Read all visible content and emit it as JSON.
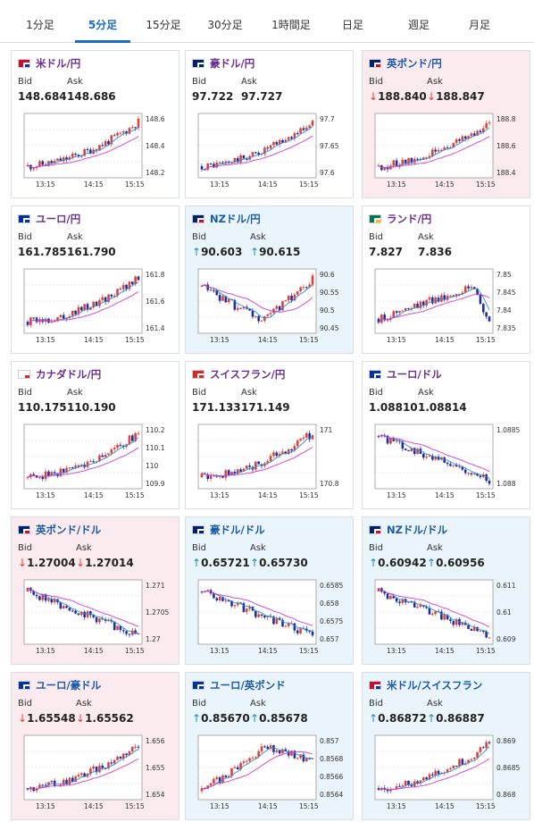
{
  "tabs": [
    "1分足",
    "5分足",
    "15分足",
    "30分足",
    "1時間足",
    "日足",
    "週足",
    "月足"
  ],
  "active_tab": 1,
  "labels": {
    "bid": "Bid",
    "ask": "Ask"
  },
  "colors": {
    "accent": "#1a6ec2",
    "up_candle": "#e0403a",
    "down_candle": "#1f2e9c",
    "ma_short": "#2a90d8",
    "ma_long": "#d23ad2"
  },
  "x_ticks": [
    "13:15",
    "14:15",
    "15:15"
  ],
  "pairs": [
    {
      "name": "米ドル/円",
      "flag": "us",
      "bid": "148.684",
      "ask": "148.686",
      "dir": "",
      "yticks": [
        "148.6",
        "148.4",
        "148.2"
      ],
      "trend": "up"
    },
    {
      "name": "豪ドル/円",
      "flag": "au",
      "bid": "97.722",
      "ask": "97.727",
      "dir": "",
      "yticks": [
        "97.7",
        "97.65",
        "97.6"
      ],
      "trend": "up"
    },
    {
      "name": "英ポンド/円",
      "flag": "gb",
      "bid": "188.840",
      "ask": "188.847",
      "dir": "down",
      "yticks": [
        "188.8",
        "188.6",
        "188.4"
      ],
      "trend": "up"
    },
    {
      "name": "ユーロ/円",
      "flag": "eu",
      "bid": "161.785",
      "ask": "161.790",
      "dir": "",
      "yticks": [
        "161.8",
        "161.6",
        "161.4"
      ],
      "trend": "up"
    },
    {
      "name": "NZドル/円",
      "flag": "nz",
      "bid": "90.603",
      "ask": "90.615",
      "dir": "up",
      "yticks": [
        "90.6",
        "90.55",
        "90.5",
        "90.45"
      ],
      "trend": "vup"
    },
    {
      "name": "ランド/円",
      "flag": "za",
      "bid": "7.827",
      "ask": "7.836",
      "dir": "",
      "yticks": [
        "7.85",
        "7.845",
        "7.84",
        "7.835"
      ],
      "trend": "updrop"
    },
    {
      "name": "カナダドル/円",
      "flag": "ca",
      "bid": "110.175",
      "ask": "110.190",
      "dir": "",
      "yticks": [
        "110.2",
        "110.1",
        "110",
        "109.9"
      ],
      "trend": "up"
    },
    {
      "name": "スイスフラン/円",
      "flag": "ch",
      "bid": "171.133",
      "ask": "171.149",
      "dir": "",
      "yticks": [
        "171",
        "170.8"
      ],
      "trend": "up"
    },
    {
      "name": "ユーロ/ドル",
      "flag": "eu",
      "bid": "1.08810",
      "ask": "1.08814",
      "dir": "",
      "yticks": [
        "1.0885",
        "1.088"
      ],
      "trend": "down"
    },
    {
      "name": "英ポンド/ドル",
      "flag": "gb",
      "bid": "1.27004",
      "ask": "1.27014",
      "dir": "down",
      "yticks": [
        "1.271",
        "1.2705",
        "1.27"
      ],
      "trend": "down"
    },
    {
      "name": "豪ドル/ドル",
      "flag": "au",
      "bid": "0.65721",
      "ask": "0.65730",
      "dir": "up",
      "yticks": [
        "0.6585",
        "0.658",
        "0.6575",
        "0.657"
      ],
      "trend": "down"
    },
    {
      "name": "NZドル/ドル",
      "flag": "nz",
      "bid": "0.60942",
      "ask": "0.60956",
      "dir": "up",
      "yticks": [
        "0.611",
        "0.61",
        "0.609"
      ],
      "trend": "down"
    },
    {
      "name": "ユーロ/豪ドル",
      "flag": "eu",
      "bid": "1.65548",
      "ask": "1.65562",
      "dir": "down",
      "yticks": [
        "1.656",
        "1.655",
        "1.654"
      ],
      "trend": "up"
    },
    {
      "name": "ユーロ/英ポンド",
      "flag": "eu",
      "bid": "0.85670",
      "ask": "0.85678",
      "dir": "up",
      "yticks": [
        "0.857",
        "0.8568",
        "0.8566",
        "0.8564"
      ],
      "trend": "upmid"
    },
    {
      "name": "米ドル/スイスフラン",
      "flag": "us",
      "bid": "0.86872",
      "ask": "0.86887",
      "dir": "up",
      "yticks": [
        "0.869",
        "0.8685",
        "0.868"
      ],
      "trend": "up"
    }
  ]
}
